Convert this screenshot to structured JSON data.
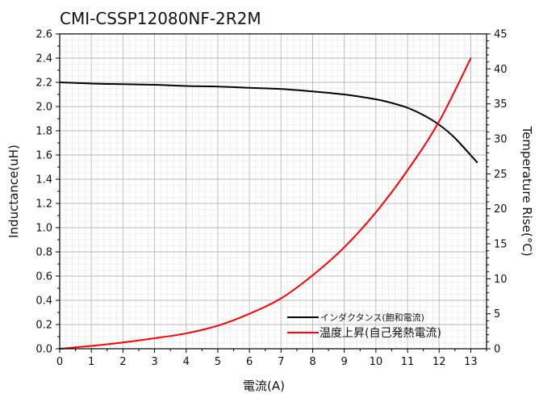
{
  "chart_data": {
    "type": "line",
    "title": "CMI-CSSP12080NF-2R2M",
    "xlabel": "電流(A)",
    "ylabel_left": "Inductance(uH)",
    "ylabel_right": "Temperature Rise(°C)",
    "xlim": [
      0,
      13.5
    ],
    "ylim_left": [
      0,
      2.6
    ],
    "ylim_right": [
      0,
      45
    ],
    "grid": true,
    "legend_position": "bottom-right",
    "x_ticks": [
      "0",
      "1",
      "2",
      "3",
      "4",
      "5",
      "6",
      "7",
      "8",
      "9",
      "10",
      "11",
      "12",
      "13"
    ],
    "y_left_ticks": [
      "0.0",
      "0.2",
      "0.4",
      "0.6",
      "0.8",
      "1.0",
      "1.2",
      "1.4",
      "1.6",
      "1.8",
      "2.0",
      "2.2",
      "2.4",
      "2.6"
    ],
    "y_right_ticks": [
      "0",
      "5",
      "10",
      "15",
      "20",
      "25",
      "30",
      "35",
      "40",
      "45"
    ],
    "series": [
      {
        "name": "インダクタンス(飽和電流)",
        "axis": "left",
        "color": "#000000",
        "x": [
          0,
          1,
          2,
          3,
          4,
          5,
          6,
          7,
          8,
          9,
          10,
          10.5,
          11,
          11.5,
          12,
          12.5,
          13.2
        ],
        "y": [
          2.2,
          2.19,
          2.185,
          2.18,
          2.17,
          2.165,
          2.155,
          2.145,
          2.125,
          2.1,
          2.06,
          2.03,
          1.99,
          1.93,
          1.85,
          1.74,
          1.54
        ]
      },
      {
        "name": "温度上昇(自己発熱電流)",
        "axis": "right",
        "color": "#ff0000",
        "x": [
          0,
          1,
          2,
          3,
          4,
          5,
          6,
          7,
          8,
          9,
          10,
          11,
          12,
          13
        ],
        "y": [
          0,
          0.4,
          0.9,
          1.5,
          2.2,
          3.3,
          5.0,
          7.2,
          10.5,
          14.5,
          19.5,
          25.5,
          32.5,
          41.5
        ]
      }
    ]
  }
}
